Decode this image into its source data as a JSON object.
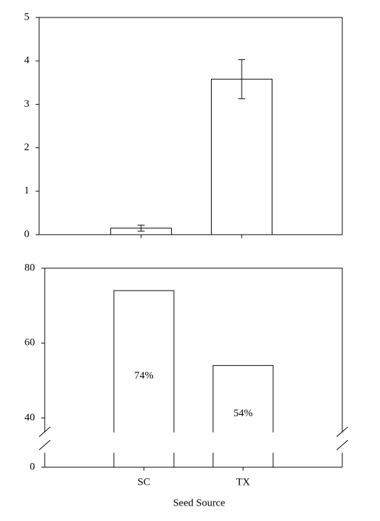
{
  "chart_data": [
    {
      "type": "bar",
      "categories": [
        null,
        null
      ],
      "values": [
        0.15,
        3.58
      ],
      "errors": [
        0.07,
        0.45
      ],
      "color": "#ffffff",
      "ylim": [
        0,
        5
      ],
      "yticks": [
        0,
        1,
        2,
        3,
        4,
        5
      ]
    },
    {
      "type": "bar",
      "categories": [
        "SC",
        "TX"
      ],
      "values": [
        74,
        54
      ],
      "value_labels": [
        "74%",
        "54%"
      ],
      "color": "#ffffff",
      "ylim": [
        0,
        80
      ],
      "y_break": [
        5,
        35
      ],
      "yticks": [
        0,
        40,
        60,
        80
      ],
      "x_label": "Seed Source"
    }
  ]
}
